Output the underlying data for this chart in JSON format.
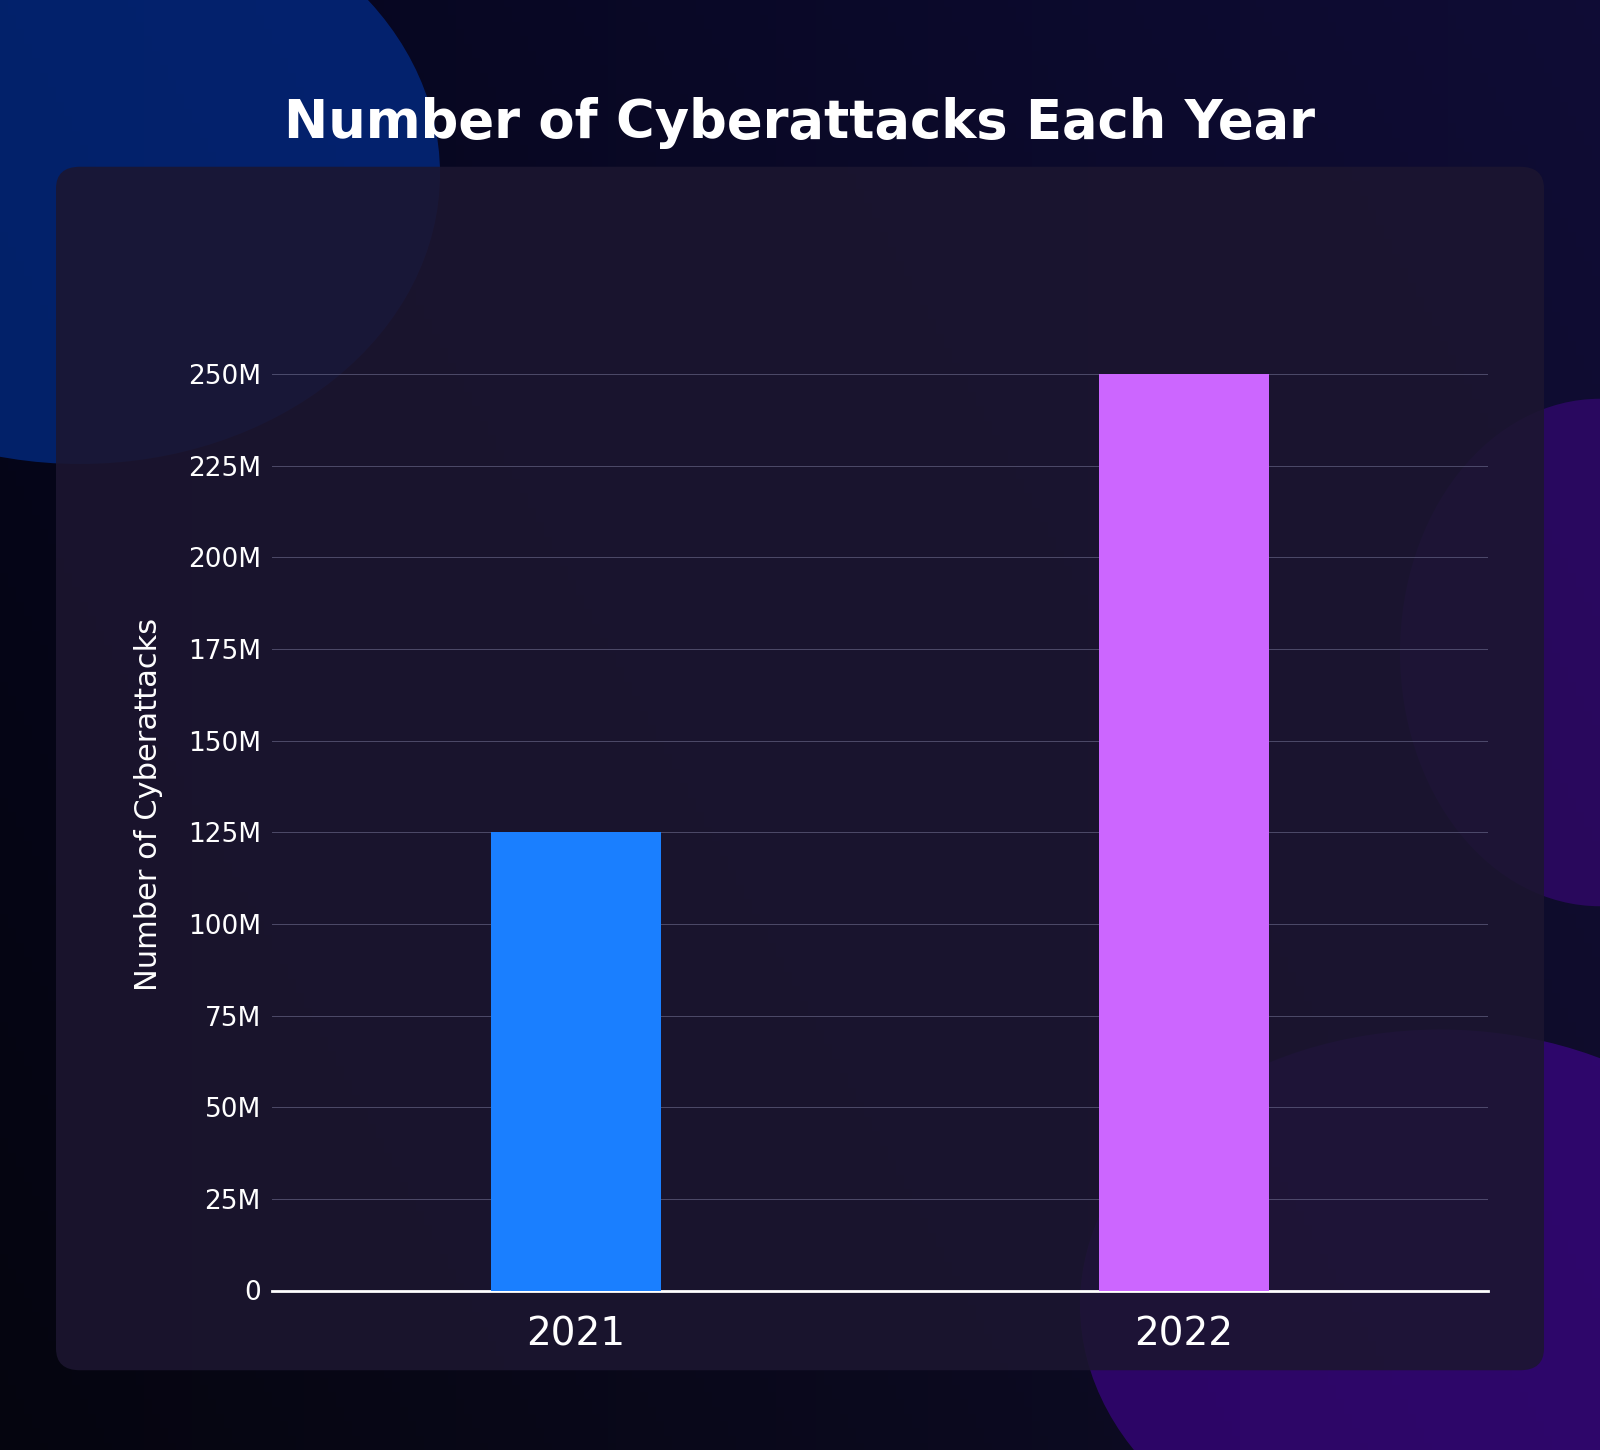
{
  "title": "Number of Cyberattacks Each Year",
  "categories": [
    "2021",
    "2022"
  ],
  "values": [
    125000000,
    250000000
  ],
  "bar_colors": [
    "#1a7fff",
    "#cc66ff"
  ],
  "ylabel": "Number of Cyberattacks",
  "ylim": [
    0,
    265000000
  ],
  "yticks": [
    0,
    25000000,
    50000000,
    75000000,
    100000000,
    125000000,
    150000000,
    175000000,
    200000000,
    225000000,
    250000000
  ],
  "ytick_labels": [
    "0",
    "25M",
    "50M",
    "75M",
    "100M",
    "125M",
    "150M",
    "175M",
    "200M",
    "225M",
    "250M"
  ],
  "title_fontsize": 38,
  "axis_label_fontsize": 22,
  "tick_fontsize": 19,
  "xlabel_fontsize": 28,
  "text_color": "#ffffff",
  "grid_color": "#777799",
  "bar_width": 0.28
}
